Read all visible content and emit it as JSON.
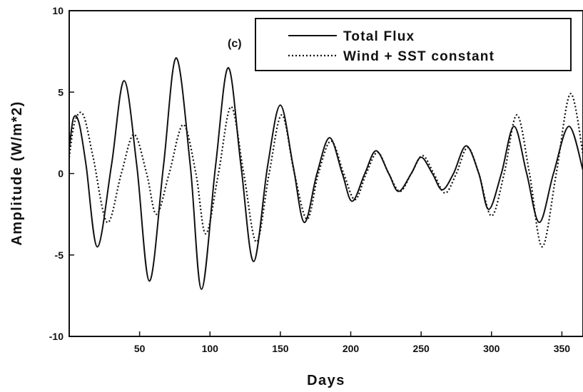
{
  "chart_data": {
    "type": "line",
    "title": "",
    "annotation": "(c)",
    "xlabel": "Days",
    "ylabel": "Amplitude (W/m*2)",
    "xlim": [
      0,
      365
    ],
    "ylim": [
      -10,
      10
    ],
    "x_ticks": [
      50,
      100,
      150,
      200,
      250,
      300,
      350
    ],
    "y_ticks": [
      -10,
      -5,
      0,
      5,
      10
    ],
    "grid": false,
    "legend_position": "top-right",
    "series": [
      {
        "name": "Total Flux",
        "style": "solid",
        "color": "#111111",
        "x": [
          0,
          3,
          7,
          12,
          20,
          30,
          39,
          48,
          57,
          67,
          76,
          86,
          94,
          104,
          113,
          122,
          131,
          141,
          150,
          159,
          167,
          176,
          185,
          194,
          201,
          210,
          218,
          227,
          234,
          243,
          250,
          258,
          265,
          273,
          282,
          291,
          298,
          307,
          316,
          325,
          334,
          344,
          355,
          365
        ],
        "y": [
          1.5,
          3.4,
          3.1,
          0.5,
          -4.5,
          0.5,
          5.7,
          0.5,
          -6.6,
          0.5,
          7.1,
          0.5,
          -7.1,
          0.5,
          6.5,
          0.5,
          -5.4,
          0.5,
          4.2,
          0.5,
          -3.0,
          0.0,
          2.2,
          0.0,
          -1.7,
          0.0,
          1.4,
          0.0,
          -1.1,
          0.0,
          1.0,
          0.0,
          -1.0,
          0.0,
          1.7,
          0.0,
          -2.2,
          0.0,
          2.9,
          0.0,
          -3.0,
          0.0,
          2.9,
          0.2
        ]
      },
      {
        "name": "Wind + SST constant",
        "style": "dotted",
        "color": "#111111",
        "x": [
          0,
          4,
          10,
          17,
          27,
          37,
          46,
          55,
          62,
          71,
          81,
          90,
          97,
          106,
          115,
          124,
          133,
          142,
          151,
          160,
          169,
          177,
          186,
          195,
          203,
          211,
          219,
          227,
          235,
          243,
          251,
          259,
          267,
          275,
          283,
          291,
          300,
          309,
          318,
          327,
          336,
          346,
          356,
          365
        ],
        "y": [
          1.0,
          3.2,
          3.6,
          1.0,
          -3.0,
          0.0,
          2.4,
          0.0,
          -2.5,
          0.0,
          3.0,
          0.0,
          -3.7,
          0.0,
          4.1,
          0.0,
          -4.2,
          0.0,
          3.6,
          0.0,
          -2.8,
          0.0,
          2.0,
          0.0,
          -1.6,
          0.0,
          1.3,
          0.0,
          -1.1,
          0.0,
          1.1,
          0.0,
          -1.2,
          0.0,
          1.6,
          0.0,
          -2.6,
          0.0,
          3.6,
          0.0,
          -4.5,
          0.0,
          4.9,
          1.2
        ]
      }
    ]
  }
}
